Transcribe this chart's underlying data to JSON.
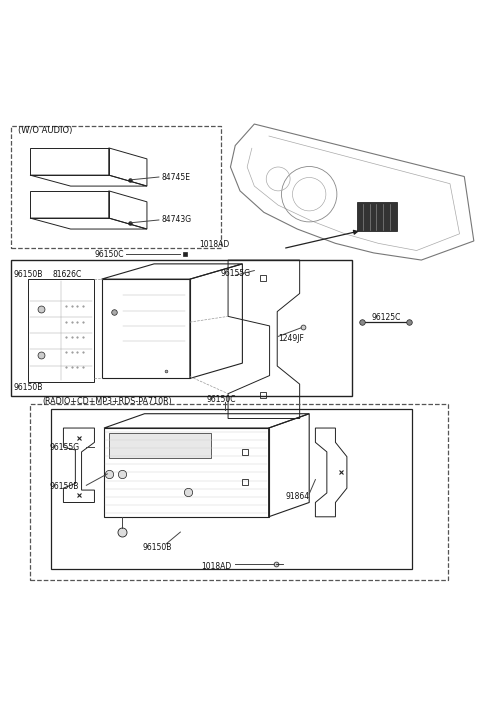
{
  "bg_color": "#ffffff",
  "line_color": "#222222",
  "section1_label": "(W/O AUDIO)",
  "section3_label": "(RADIO+CD+MP3+RDS-PA710R)",
  "parts_sec1": [
    "84745E",
    "84743G"
  ],
  "parts_sec2": [
    "96150B",
    "81626C",
    "96150B",
    "96155G",
    "1249JF",
    "96125C"
  ],
  "parts_sec3": [
    "96155G",
    "96150B",
    "96150B",
    "91864",
    "1018AD",
    "96150C"
  ],
  "label_above_sec2": "96150C",
  "label_1018AD": "1018AD"
}
